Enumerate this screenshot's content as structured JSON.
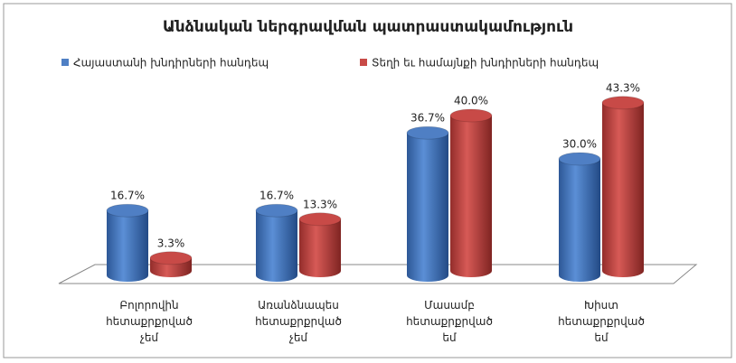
{
  "chart_data": {
    "type": "bar3d",
    "title": "Անձնական ներգրավման պատրաստակամություն",
    "categories": [
      "Բոլորովին հետաքրքրված չեմ",
      "Առանձնապես հետաքրքրված չեմ",
      "Մասամբ հետաքրքրված եմ",
      "Խիստ հետաքրքրված եմ"
    ],
    "series": [
      {
        "name": "Հայաստանի խնդիրների  հանդեպ",
        "color": "#4f7fc4",
        "values": [
          16.7,
          16.7,
          36.7,
          30.0
        ],
        "value_labels": [
          "16.7%",
          "16.7%",
          "36.7%",
          "30.0%"
        ]
      },
      {
        "name": "Տեղի եւ համայնքի խնդիրների հանդեպ",
        "color": "#c84a47",
        "values": [
          3.3,
          13.3,
          40.0,
          43.3
        ],
        "value_labels": [
          "3.3%",
          "13.3%",
          "40.0%",
          "43.3%"
        ]
      }
    ],
    "legend": "top"
  }
}
